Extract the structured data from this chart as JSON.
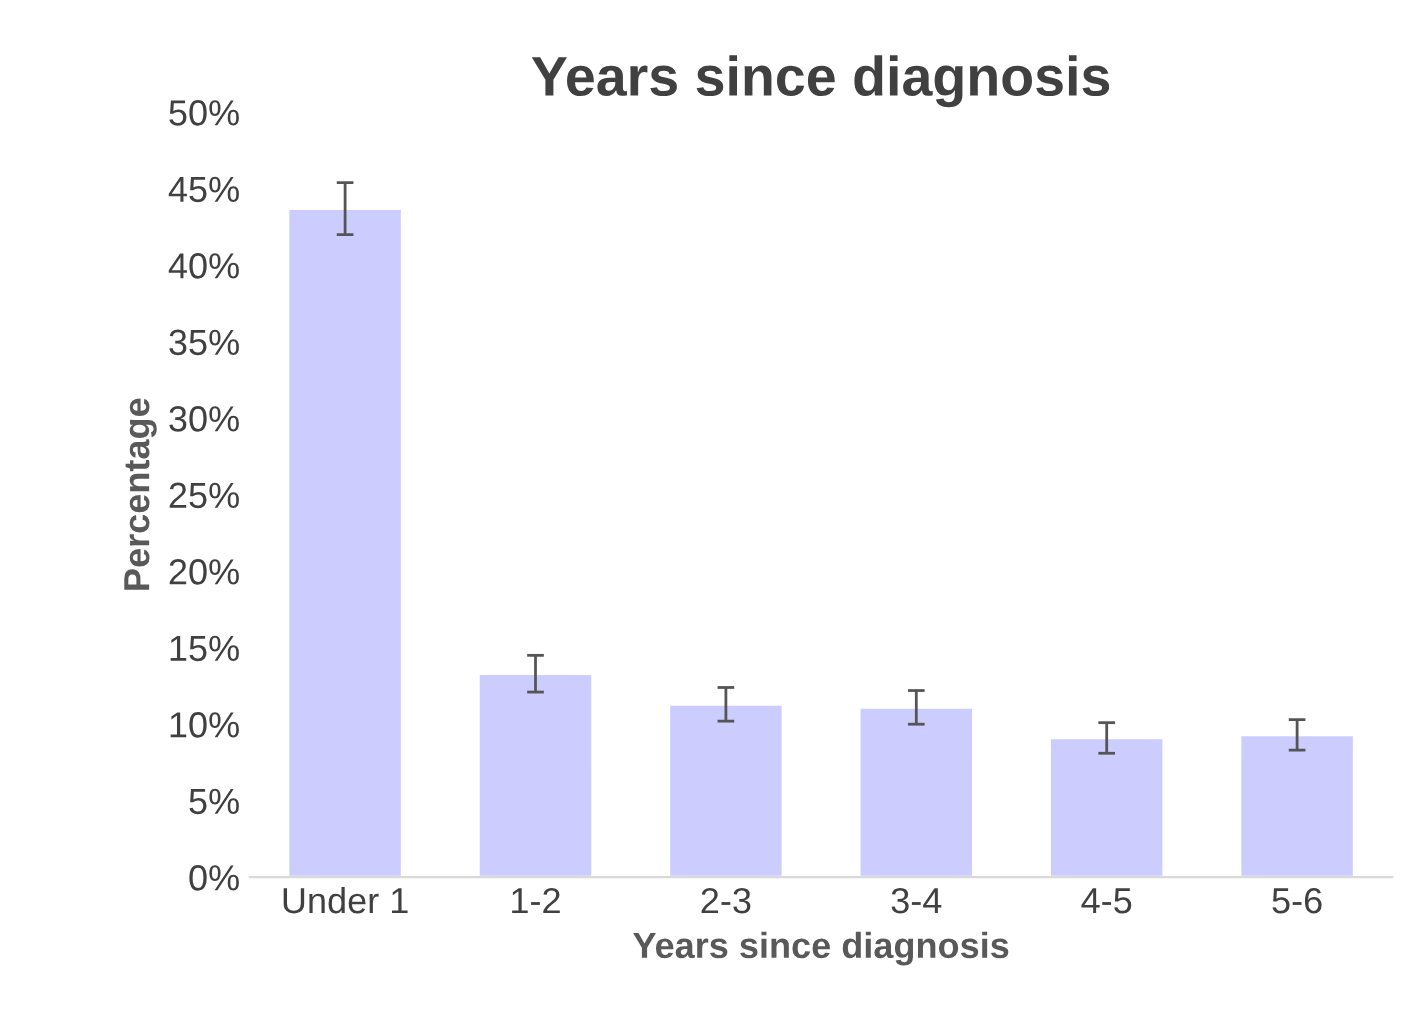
{
  "chart_data": {
    "type": "bar",
    "title": "Years since diagnosis",
    "xlabel": "Years since diagnosis",
    "ylabel": "Percentage",
    "categories": [
      "Under 1",
      "1-2",
      "2-3",
      "3-4",
      "4-5",
      "5-6"
    ],
    "values": [
      43.7,
      13.3,
      11.3,
      11.1,
      9.1,
      9.3
    ],
    "errors": [
      1.7,
      1.2,
      1.1,
      1.1,
      1.0,
      1.0
    ],
    "color": "#ccccff",
    "ylim": [
      0,
      50
    ],
    "yticks": [
      {
        "value": 0,
        "label": "0%"
      },
      {
        "value": 5,
        "label": "5%"
      },
      {
        "value": 10,
        "label": "10%"
      },
      {
        "value": 15,
        "label": "15%"
      },
      {
        "value": 20,
        "label": "20%"
      },
      {
        "value": 25,
        "label": "25%"
      },
      {
        "value": 30,
        "label": "30%"
      },
      {
        "value": 35,
        "label": "35%"
      },
      {
        "value": 40,
        "label": "40%"
      },
      {
        "value": 45,
        "label": "45%"
      },
      {
        "value": 50,
        "label": "50%"
      }
    ],
    "grid": false
  }
}
